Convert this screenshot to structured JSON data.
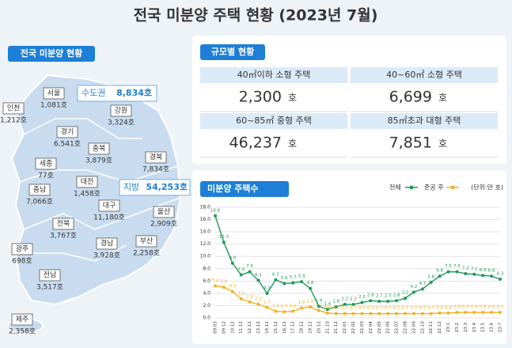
{
  "title": "전국 미분양 주택 현황 (2023년 7월)",
  "map": {
    "heading": "전국 미분양 현황",
    "capital": {
      "label": "수도권",
      "value": "8,834호"
    },
    "provinces": {
      "label": "지방",
      "value": "54,253호"
    },
    "regions": [
      {
        "name": "인천",
        "value": "1,212호"
      },
      {
        "name": "서울",
        "value": "1,081호"
      },
      {
        "name": "경기",
        "value": "6,541호"
      },
      {
        "name": "강원",
        "value": "3,324호"
      },
      {
        "name": "충북",
        "value": "3,879호"
      },
      {
        "name": "세종",
        "value": "77호"
      },
      {
        "name": "충남",
        "value": "7,066호"
      },
      {
        "name": "대전",
        "value": "1,458호"
      },
      {
        "name": "경북",
        "value": "7,834호"
      },
      {
        "name": "대구",
        "value": "11,180호"
      },
      {
        "name": "전북",
        "value": "3,767호"
      },
      {
        "name": "울산",
        "value": "2,909호"
      },
      {
        "name": "경남",
        "value": "3,928호"
      },
      {
        "name": "부산",
        "value": "2,258호"
      },
      {
        "name": "광주",
        "value": "698호"
      },
      {
        "name": "전남",
        "value": "3,517호"
      },
      {
        "name": "제주",
        "value": "2,358호"
      }
    ]
  },
  "size": {
    "heading": "규모별 현황",
    "cells": [
      {
        "label": "40㎡이하 소형 주택",
        "value": "2,300",
        "unit": "호"
      },
      {
        "label": "40~60㎡ 소형 주택",
        "value": "6,699",
        "unit": "호"
      },
      {
        "label": "60~85㎡ 중형 주택",
        "value": "46,237",
        "unit": "호"
      },
      {
        "label": "85㎡초과 대형 주택",
        "value": "7,851",
        "unit": "호"
      }
    ]
  },
  "chart_data": {
    "type": "line",
    "title": "미분양 주택수",
    "unit_note": "(단위:만 호)",
    "categories": [
      "09.03",
      "09.12",
      "10.12",
      "11.12",
      "12.12",
      "13.12",
      "14.12",
      "15.12",
      "16.12",
      "17.12",
      "18.12",
      "19.12",
      "20.12",
      "21.10",
      "21.12",
      "22.01",
      "22.02",
      "22.03",
      "22.04",
      "22.05",
      "22.06",
      "22.07",
      "22.08",
      "22.09",
      "22.10",
      "22.11",
      "22.12",
      "23.1",
      "23.2",
      "23.3",
      "23.4",
      "23.5",
      "23.6",
      "23.7"
    ],
    "series": [
      {
        "name": "전체",
        "color": "#1e9a5a",
        "values": [
          16.6,
          12.3,
          8.9,
          7.0,
          7.5,
          6.1,
          4.0,
          6.2,
          5.6,
          5.7,
          5.9,
          4.8,
          1.9,
          1.4,
          1.8,
          2.2,
          2.2,
          2.5,
          2.8,
          2.7,
          2.7,
          2.8,
          3.2,
          4.2,
          4.7,
          5.8,
          6.8,
          7.5,
          7.5,
          7.2,
          7.1,
          6.9,
          6.8,
          6.3
        ],
        "value_labels": [
          "16.6",
          "12.3",
          "8.9",
          "7.0",
          "7.5",
          "6.1",
          "4.0",
          "6.2",
          "5.6",
          "5.7",
          "5.9",
          "4.8",
          "1.9",
          "1.4",
          "1.8",
          "2.2",
          "2.2",
          "2.5",
          "2.8",
          "2.7",
          "2.7",
          "2.8",
          "3.2",
          "4.2",
          "4.7",
          "5.8",
          "6.8",
          "7.5",
          "7.5",
          "7.2",
          "7.1",
          "6.9",
          "6.8",
          "6.3"
        ]
      },
      {
        "name": "준공 후",
        "color": "#f0b323",
        "values": [
          5.2,
          5.0,
          4.3,
          3.1,
          2.6,
          2.2,
          1.7,
          1.1,
          1.0,
          1.1,
          1.6,
          1.8,
          1.2,
          0.8,
          0.7,
          0.7,
          0.7,
          0.7,
          0.7,
          0.7,
          0.7,
          0.7,
          0.7,
          0.7,
          0.7,
          0.7,
          0.8,
          0.8,
          0.9,
          0.9,
          0.9,
          0.9,
          0.9,
          0.9
        ],
        "value_labels": [
          "5.2",
          "5.0",
          "4.3",
          "3.1",
          "2.6",
          "2.2",
          "1.7",
          "1.1",
          "1.0",
          "1.1",
          "1.6",
          "1.8",
          "1.2",
          "0.8",
          "0.7",
          "0.7",
          "0.7",
          "0.7",
          "0.7",
          "0.7",
          "0.7",
          "0.7",
          "0.7",
          "0.7",
          "0.7",
          "0.7",
          "0.8",
          "0.8",
          "0.9",
          "0.9",
          "0.9",
          "0.9",
          "0.9",
          "0.9"
        ]
      }
    ],
    "ylim": [
      0,
      18
    ],
    "yticks": [
      {
        "value": 0,
        "label": "0.0"
      },
      {
        "value": 2,
        "label": "2.0"
      },
      {
        "value": 4,
        "label": "4.0"
      },
      {
        "value": 6,
        "label": "6.0"
      },
      {
        "value": 8,
        "label": "8.0"
      },
      {
        "value": 10,
        "label": "10.0"
      },
      {
        "value": 12,
        "label": "12.0"
      },
      {
        "value": 14,
        "label": "14.0"
      },
      {
        "value": 16,
        "label": "16.0"
      },
      {
        "value": 18,
        "label": "18.0"
      }
    ],
    "grid": true
  }
}
